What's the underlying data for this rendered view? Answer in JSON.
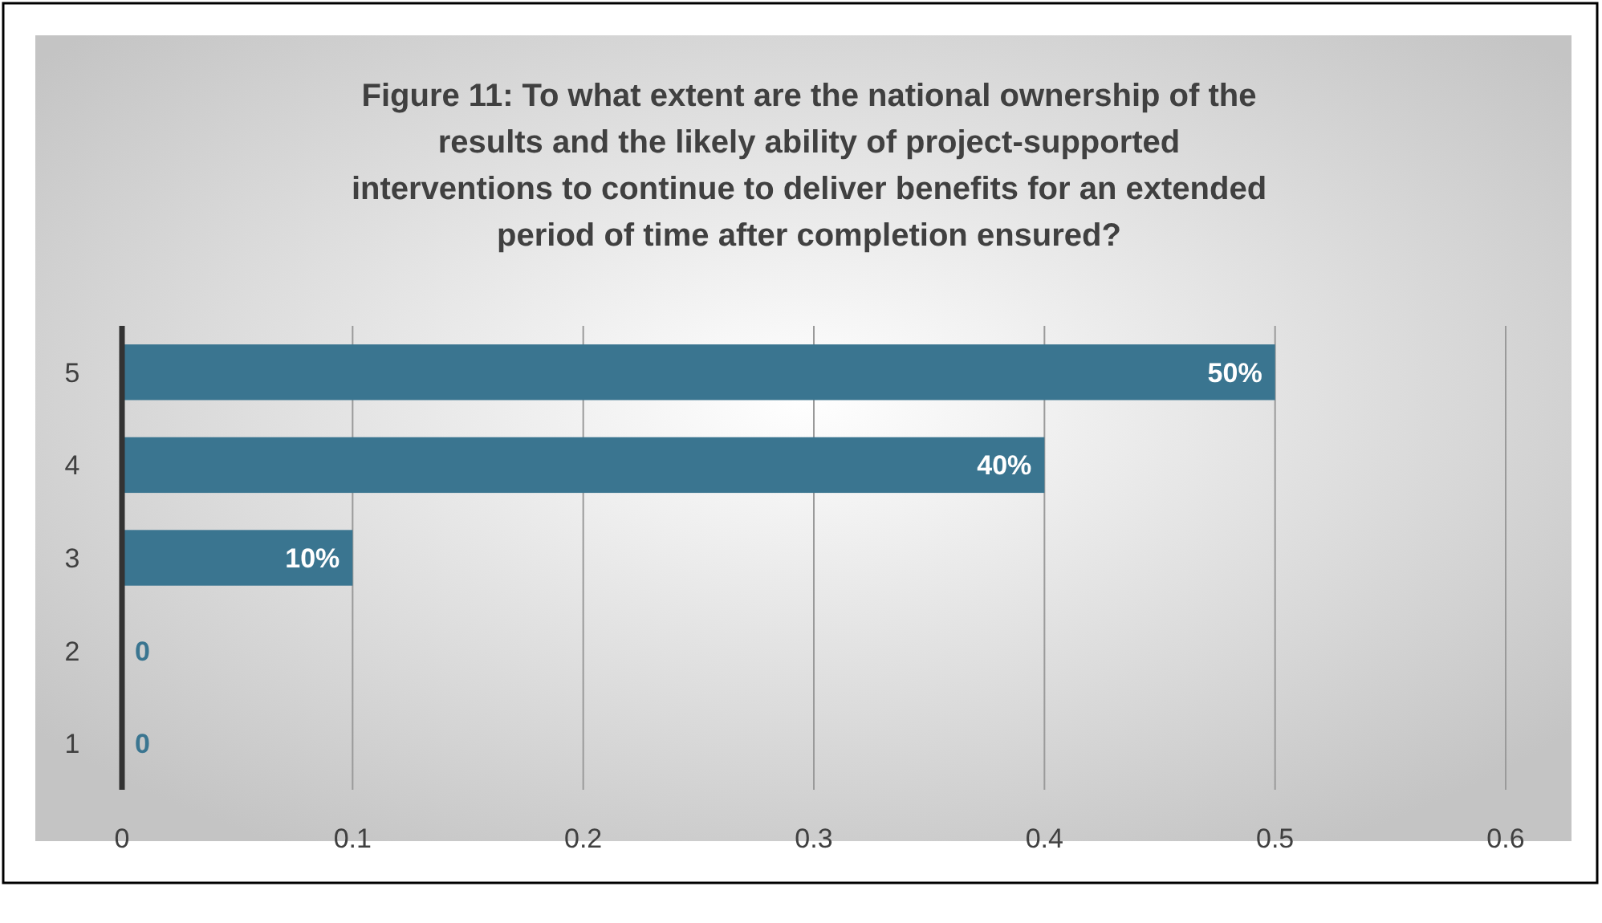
{
  "chart_data": {
    "type": "bar",
    "orientation": "horizontal",
    "title": "Figure 11: To what extent are the national ownership of the results and the likely ability of project-supported interventions to continue to deliver benefits for an extended period of time after completion ensured?",
    "categories": [
      "5",
      "4",
      "3",
      "2",
      "1"
    ],
    "values": [
      0.5,
      0.4,
      0.1,
      0,
      0
    ],
    "value_labels": [
      "50%",
      "40%",
      "10%",
      "0",
      "0"
    ],
    "color": "#3a7590",
    "xlim": [
      0,
      0.6
    ],
    "xticks": [
      0,
      0.1,
      0.2,
      0.3,
      0.4,
      0.5,
      0.6
    ],
    "grid": "x"
  }
}
